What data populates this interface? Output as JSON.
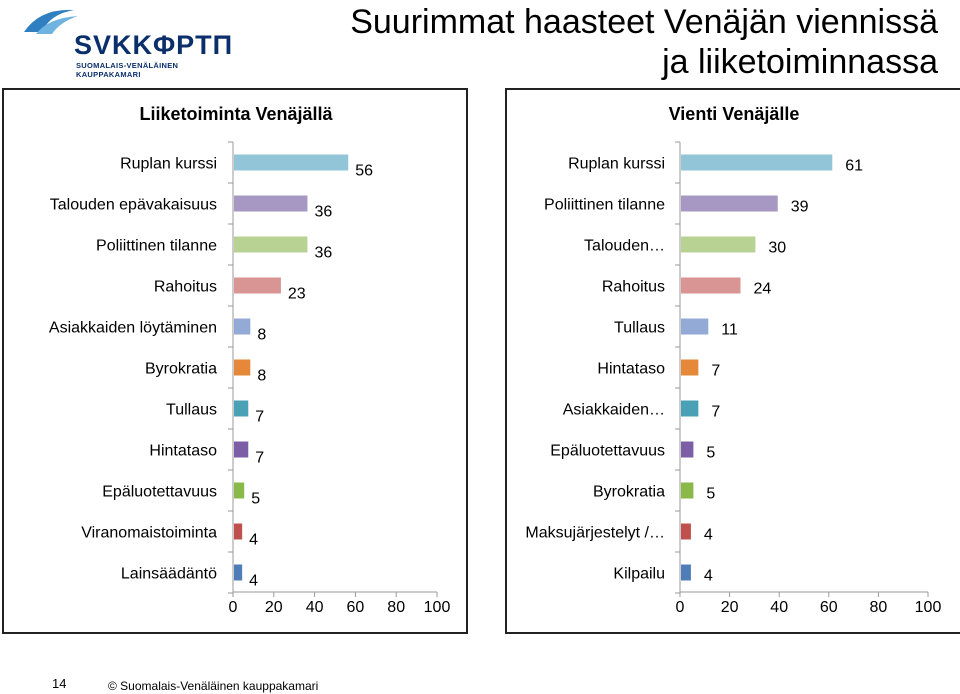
{
  "logo": {
    "name": "SVKKΦΡΤΠ",
    "subtitle": "SUOMALAIS-VENÄLÄINEN KAUPPAKAMARI"
  },
  "title_line1": "Suurimmat haasteet Venäjän viennissä",
  "title_line2": "ja liiketoiminnassa",
  "footer": {
    "page": "14",
    "copyright": "© Suomalais-Venäläinen kauppakamari"
  },
  "chart_data": [
    {
      "type": "bar",
      "orientation": "horizontal",
      "title": "Liiketoiminta Venäjällä",
      "categories": [
        "Ruplan kurssi",
        "Talouden epävakaisuus",
        "Poliittinen tilanne",
        "Rahoitus",
        "Asiakkaiden löytäminen",
        "Byrokratia",
        "Tullaus",
        "Hintataso",
        "Epäluotettavuus",
        "Viranomaistoiminta",
        "Lainsäädäntö"
      ],
      "values": [
        56,
        36,
        36,
        23,
        8,
        8,
        7,
        7,
        5,
        4,
        4
      ],
      "colors": [
        "#92c5d8",
        "#a698c2",
        "#b8d293",
        "#d99594",
        "#93a9d6",
        "#e6883a",
        "#4aa0b5",
        "#7b5ea5",
        "#8ab849",
        "#c0504d",
        "#4f7db8"
      ],
      "xlim": [
        0,
        100
      ],
      "xticks": [
        "0",
        "20",
        "40",
        "60",
        "80",
        "100"
      ],
      "grid": false
    },
    {
      "type": "bar",
      "orientation": "horizontal",
      "title": "Vienti Venäjälle",
      "categories": [
        "Ruplan kurssi",
        "Poliittinen tilanne",
        "Talouden…",
        "Rahoitus",
        "Tullaus",
        "Hintataso",
        "Asiakkaiden…",
        "Epäluotettavuus",
        "Byrokratia",
        "Maksujärjestelyt /…",
        "Kilpailu"
      ],
      "values": [
        61,
        39,
        30,
        24,
        11,
        7,
        7,
        5,
        5,
        4,
        4
      ],
      "colors": [
        "#92c5d8",
        "#a698c2",
        "#b8d293",
        "#d99594",
        "#93a9d6",
        "#e6883a",
        "#4aa0b5",
        "#7b5ea5",
        "#8ab849",
        "#c0504d",
        "#4f7db8"
      ],
      "xlim": [
        0,
        100
      ],
      "xticks": [
        "0",
        "20",
        "40",
        "60",
        "80",
        "100"
      ],
      "grid": false
    }
  ]
}
